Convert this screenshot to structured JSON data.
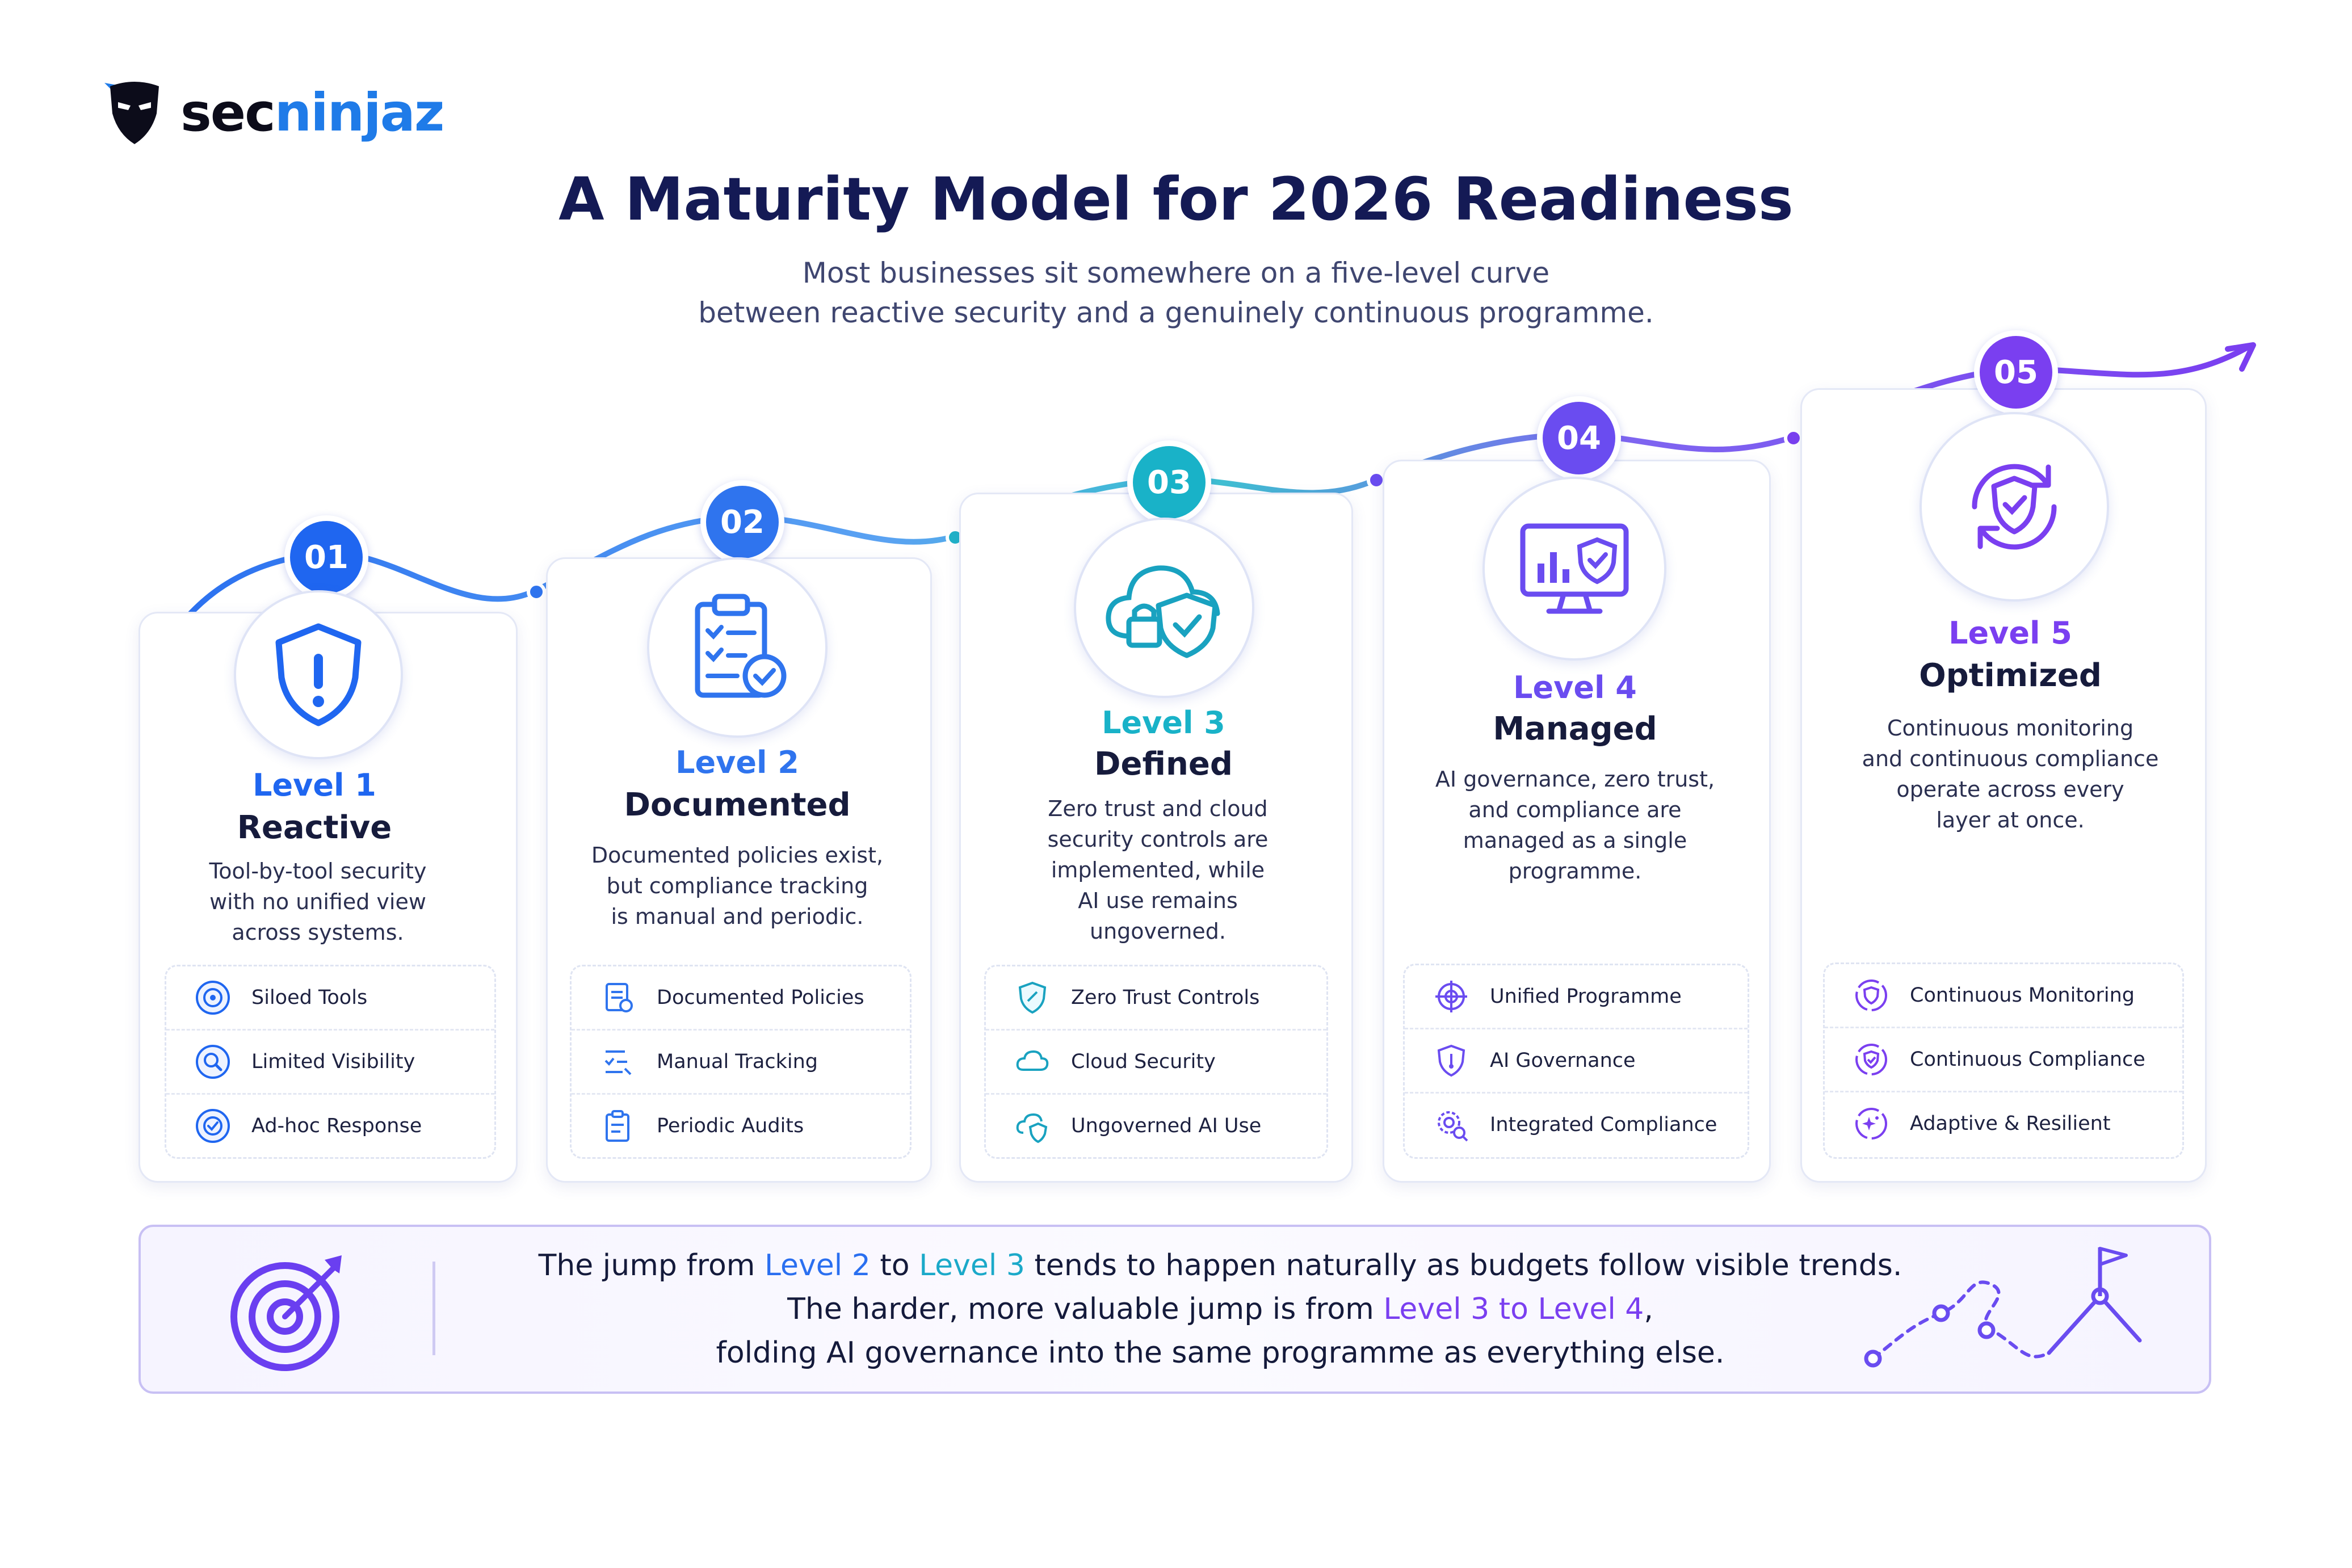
{
  "brand": {
    "name_part1": "sec",
    "name_part2": "ninjaz"
  },
  "header": {
    "title": "A Maturity Model for 2026 Readiness",
    "subtitle": "Most businesses sit somewhere on a five-level curve\nbetween reactive security and a genuinely continuous programme."
  },
  "levels": [
    {
      "number": "01",
      "level": "Level 1",
      "name": "Reactive",
      "color": "#1f66f0",
      "icon": "shield-alert-icon",
      "description": "Tool-by-tool security\nwith no unified view\nacross systems.",
      "features": [
        {
          "icon": "target-icon",
          "label": "Siloed Tools"
        },
        {
          "icon": "magnifier-icon",
          "label": "Limited Visibility"
        },
        {
          "icon": "check-circle-icon",
          "label": "Ad-hoc Response"
        }
      ]
    },
    {
      "number": "02",
      "level": "Level 2",
      "name": "Documented",
      "color": "#2f74ee",
      "icon": "clipboard-check-icon",
      "description": "Documented policies exist,\nbut compliance tracking\nis manual and periodic.",
      "features": [
        {
          "icon": "document-icon",
          "label": "Documented Policies"
        },
        {
          "icon": "checklist-icon",
          "label": "Manual Tracking"
        },
        {
          "icon": "clipboard-icon",
          "label": "Periodic Audits"
        }
      ]
    },
    {
      "number": "03",
      "level": "Level 3",
      "name": "Defined",
      "color": "#19b2c8",
      "icon": "cloud-lock-shield-icon",
      "description": "Zero trust and cloud\nsecurity controls are\nimplemented, while\nAI use remains\nungoverned.",
      "features": [
        {
          "icon": "shield-icon",
          "label": "Zero Trust Controls"
        },
        {
          "icon": "cloud-icon",
          "label": "Cloud Security"
        },
        {
          "icon": "cloud-shield-icon",
          "label": "Ungoverned AI Use"
        }
      ]
    },
    {
      "number": "04",
      "level": "Level 4",
      "name": "Managed",
      "color": "#6a4cf0",
      "icon": "monitor-chart-shield-icon",
      "description": "AI governance, zero trust,\nand compliance are\nmanaged as a single\nprogramme.",
      "features": [
        {
          "icon": "crosshair-icon",
          "label": "Unified Programme"
        },
        {
          "icon": "ai-shield-icon",
          "label": "AI Governance"
        },
        {
          "icon": "gear-search-icon",
          "label": "Integrated Compliance"
        }
      ]
    },
    {
      "number": "05",
      "level": "Level 5",
      "name": "Optimized",
      "color": "#7a3ff0",
      "icon": "shield-cycle-icon",
      "description": "Continuous monitoring\nand continuous compliance\noperate across every\nlayer at once.",
      "features": [
        {
          "icon": "shield-refresh-icon",
          "label": "Continuous Monitoring"
        },
        {
          "icon": "shield-check-icon",
          "label": "Continuous Compliance"
        },
        {
          "icon": "sparkle-icon",
          "label": "Adaptive & Resilient"
        }
      ]
    }
  ],
  "footer": {
    "line1_a": "The jump from ",
    "line1_b": "Level 2",
    "line1_c": " to ",
    "line1_d": "Level 3",
    "line1_e": " tends to happen naturally as budgets follow visible trends.",
    "line2_a": "The harder, more valuable jump is from ",
    "line2_b": "Level 3 to Level 4",
    "line2_c": ",",
    "line3": "folding AI governance into the same programme as everything else."
  }
}
